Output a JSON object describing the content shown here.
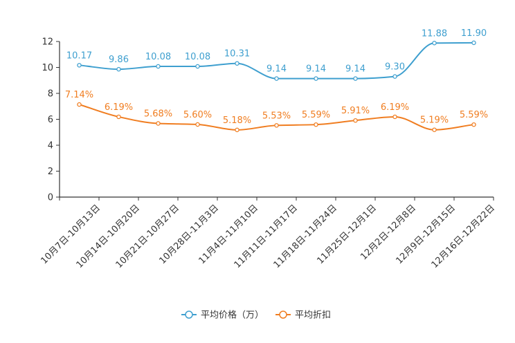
{
  "chart_data": {
    "type": "line",
    "categories": [
      "10月7日-10月13日",
      "10月14日-10月20日",
      "10月21日-10月27日",
      "10月28日-11月3日",
      "11月4日-11月10日",
      "11月11日-11月17日",
      "11月18日-11月24日",
      "11月25日-12月1日",
      "12月2日-12月8日",
      "12月9日-12月15日",
      "12月16日-12月22日"
    ],
    "series": [
      {
        "name": "平均价格（万）",
        "color": "#3e9fcf",
        "values": [
          10.17,
          9.86,
          10.08,
          10.08,
          10.31,
          9.14,
          9.14,
          9.14,
          9.3,
          11.88,
          11.9
        ],
        "labels": [
          "10.17",
          "9.86",
          "10.08",
          "10.08",
          "10.31",
          "9.14",
          "9.14",
          "9.14",
          "9.30",
          "11.88",
          "11.90"
        ]
      },
      {
        "name": "平均折扣",
        "color": "#f07d20",
        "values": [
          7.14,
          6.19,
          5.68,
          5.6,
          5.18,
          5.53,
          5.59,
          5.91,
          6.19,
          5.19,
          5.59
        ],
        "labels": [
          "7.14%",
          "6.19%",
          "5.68%",
          "5.60%",
          "5.18%",
          "5.53%",
          "5.59%",
          "5.91%",
          "6.19%",
          "5.19%",
          "5.59%"
        ]
      }
    ],
    "yticks": [
      0,
      2,
      4,
      6,
      8,
      10,
      12
    ],
    "ylim": [
      0,
      12
    ],
    "legend_position": "bottom-center",
    "grid": false
  }
}
